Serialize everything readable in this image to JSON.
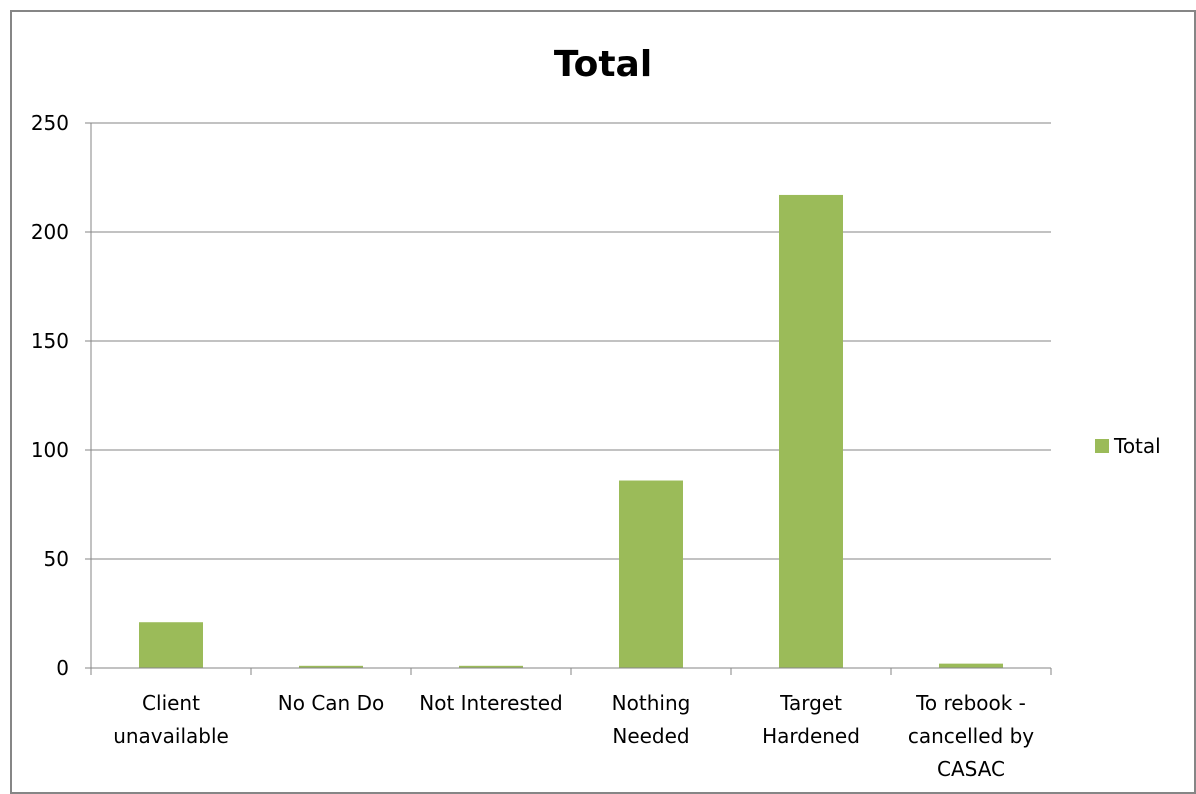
{
  "chart_data": {
    "type": "bar",
    "title": "Total",
    "xlabel": "",
    "ylabel": "",
    "categories": [
      [
        "Client",
        "unavailable"
      ],
      [
        "No Can Do"
      ],
      [
        "Not Interested"
      ],
      [
        "Nothing",
        "Needed"
      ],
      [
        "Target",
        "Hardened"
      ],
      [
        "To rebook -",
        "cancelled by",
        "CASAC"
      ]
    ],
    "series": [
      {
        "name": "Total",
        "color": "#9bbb59",
        "values": [
          21,
          1,
          1,
          86,
          217,
          2
        ]
      }
    ],
    "ylim": [
      0,
      250
    ],
    "yticks": [
      0,
      50,
      100,
      150,
      200,
      250
    ],
    "grid": true,
    "legend": "right"
  }
}
